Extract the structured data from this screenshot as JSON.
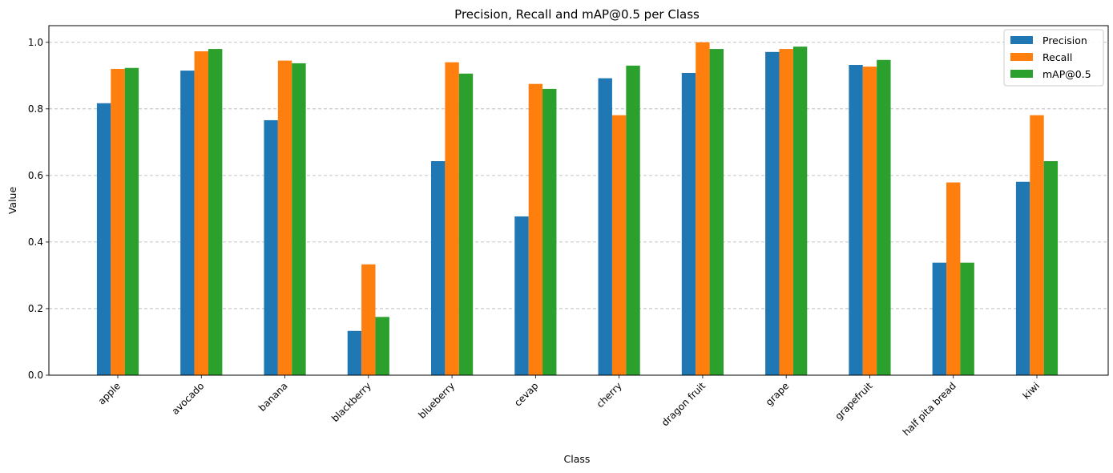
{
  "chart_data": {
    "type": "bar",
    "title": "Precision, Recall and mAP@0.5 per Class",
    "xlabel": "Class",
    "ylabel": "Value",
    "ylim": [
      0,
      1.05
    ],
    "yticks": [
      "0.0",
      "0.2",
      "0.4",
      "0.6",
      "0.8",
      "1.0"
    ],
    "grid": "horizontal dashed",
    "legend_position": "top-right",
    "categories": [
      "apple",
      "avocado",
      "banana",
      "blackberry",
      "blueberry",
      "cevap",
      "cherry",
      "dragon fruit",
      "grape",
      "grapefruit",
      "half pita bread",
      "kiwi"
    ],
    "series": [
      {
        "name": "Precision",
        "color": "#1f77b4",
        "values": [
          0.817,
          0.915,
          0.766,
          0.133,
          0.643,
          0.477,
          0.892,
          0.908,
          0.971,
          0.932,
          0.338,
          0.581
        ]
      },
      {
        "name": "Recall",
        "color": "#ff7f0e",
        "values": [
          0.92,
          0.973,
          0.945,
          0.333,
          0.94,
          0.875,
          0.781,
          1.0,
          0.98,
          0.927,
          0.579,
          0.781
        ]
      },
      {
        "name": "mAP@0.5",
        "color": "#2ca02c",
        "values": [
          0.923,
          0.98,
          0.937,
          0.175,
          0.906,
          0.86,
          0.93,
          0.98,
          0.987,
          0.947,
          0.338,
          0.643
        ]
      }
    ]
  }
}
